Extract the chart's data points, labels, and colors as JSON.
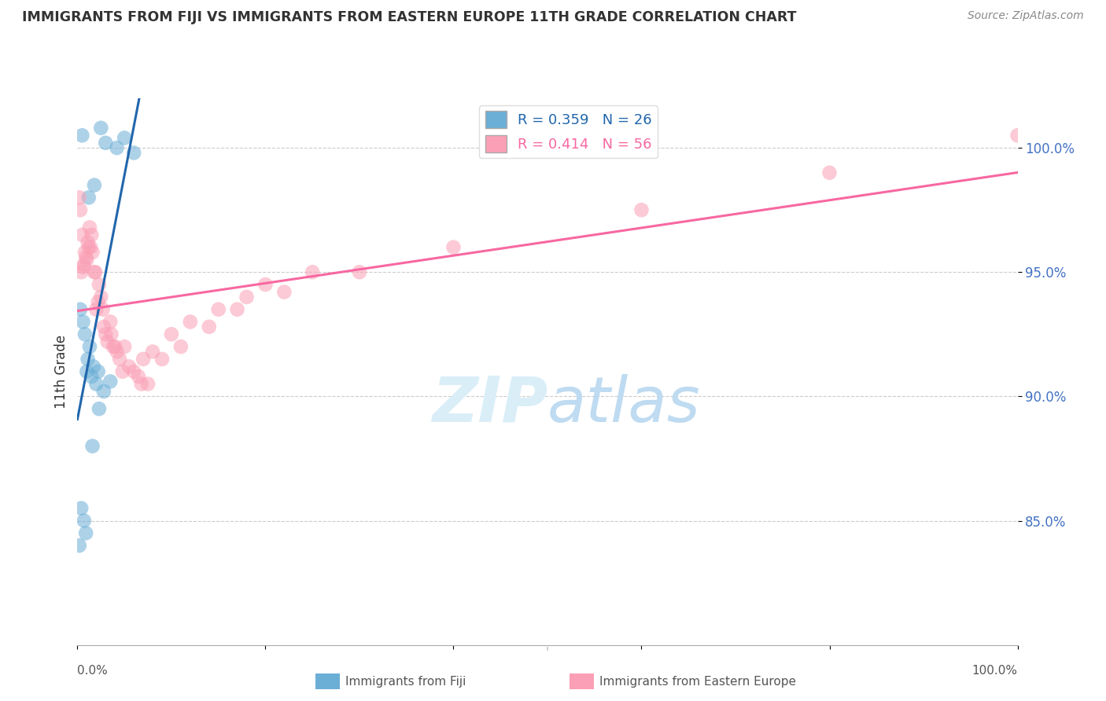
{
  "title": "IMMIGRANTS FROM FIJI VS IMMIGRANTS FROM EASTERN EUROPE 11TH GRADE CORRELATION CHART",
  "source": "Source: ZipAtlas.com",
  "ylabel": "11th Grade",
  "x_range": [
    0.0,
    100.0
  ],
  "y_range": [
    80.0,
    102.0
  ],
  "fiji_R": 0.359,
  "fiji_N": 26,
  "eastern_europe_R": 0.414,
  "eastern_europe_N": 56,
  "fiji_color": "#6baed6",
  "eastern_europe_color": "#fa9fb5",
  "fiji_line_color": "#2166ac",
  "eastern_europe_line_color": "#f768a1",
  "watermark_color": "#daeef8",
  "ytick_vals": [
    85.0,
    90.0,
    95.0,
    100.0
  ],
  "fiji_x": [
    0.5,
    1.2,
    1.8,
    2.5,
    3.0,
    4.2,
    5.0,
    6.0,
    0.3,
    0.6,
    0.8,
    1.0,
    1.1,
    1.3,
    1.5,
    1.7,
    2.0,
    2.2,
    2.8,
    3.5,
    0.4,
    0.7,
    0.9,
    1.6,
    0.2,
    2.3
  ],
  "fiji_y": [
    100.5,
    98.0,
    98.5,
    100.8,
    100.2,
    100.0,
    100.4,
    99.8,
    93.5,
    93.0,
    92.5,
    91.0,
    91.5,
    92.0,
    90.8,
    91.2,
    90.5,
    91.0,
    90.2,
    90.6,
    85.5,
    85.0,
    84.5,
    88.0,
    84.0,
    89.5
  ],
  "eastern_europe_x": [
    0.3,
    0.5,
    0.8,
    1.0,
    1.2,
    1.5,
    0.4,
    0.6,
    0.7,
    0.9,
    1.1,
    1.3,
    1.8,
    2.0,
    2.5,
    3.0,
    3.5,
    4.0,
    4.5,
    5.0,
    6.0,
    7.0,
    8.0,
    10.0,
    12.0,
    15.0,
    18.0,
    20.0,
    25.0,
    2.2,
    2.8,
    3.2,
    1.6,
    1.9,
    2.3,
    2.7,
    3.8,
    5.5,
    6.5,
    7.5,
    4.2,
    1.4,
    0.2,
    3.6,
    4.8,
    6.8,
    9.0,
    11.0,
    14.0,
    17.0,
    22.0,
    30.0,
    40.0,
    60.0,
    80.0,
    100.0
  ],
  "eastern_europe_y": [
    97.5,
    96.5,
    95.8,
    95.5,
    96.0,
    96.5,
    95.0,
    95.2,
    95.3,
    95.6,
    96.2,
    96.8,
    95.0,
    93.5,
    94.0,
    92.5,
    93.0,
    92.0,
    91.5,
    92.0,
    91.0,
    91.5,
    91.8,
    92.5,
    93.0,
    93.5,
    94.0,
    94.5,
    95.0,
    93.8,
    92.8,
    92.2,
    95.8,
    95.0,
    94.5,
    93.5,
    92.0,
    91.2,
    90.8,
    90.5,
    91.8,
    96.0,
    98.0,
    92.5,
    91.0,
    90.5,
    91.5,
    92.0,
    92.8,
    93.5,
    94.2,
    95.0,
    96.0,
    97.5,
    99.0,
    100.5
  ]
}
